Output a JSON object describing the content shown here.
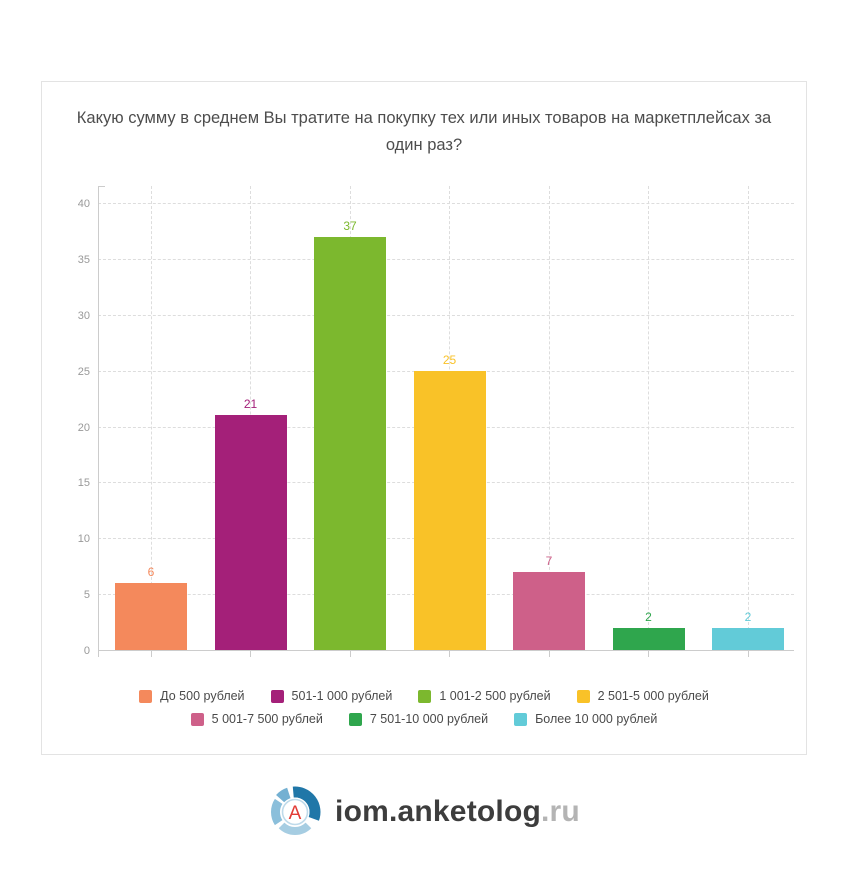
{
  "card": {
    "title": "Какую сумму в среднем Вы тратите на покупку тех или иных товаров на маркетплейсах за один раз?"
  },
  "chart_data": {
    "type": "bar",
    "title": "Какую сумму в среднем Вы тратите на покупку тех или иных товаров на маркетплейсах за один раз?",
    "categories": [
      "До 500 рублей",
      "501-1 000 рублей",
      "1 001-2 500 рублей",
      "2 501-5 000 рублей",
      "5 001-7 500 рублей",
      "7 501-10 000 рублей",
      "Более 10 000 рублей"
    ],
    "values": [
      6,
      21,
      37,
      25,
      7,
      2,
      2
    ],
    "colors": [
      "#F4895C",
      "#A42079",
      "#7CB82E",
      "#F9C228",
      "#CE6089",
      "#2FA64D",
      "#62CBD8"
    ],
    "xlabel": "",
    "ylabel": "",
    "ylim": [
      0,
      40
    ],
    "yticks": [
      0,
      5,
      10,
      15,
      20,
      25,
      30,
      35,
      40
    ],
    "grid": "dashed",
    "value_labels": true,
    "legend_position": "bottom",
    "legend_rows": [
      4,
      3
    ],
    "axis_color": "#cccccc",
    "grid_color": "#dddddd",
    "tick_label_color": "#999999"
  },
  "footer": {
    "brand_name": "iom.anketolog",
    "brand_tld": ".ru",
    "logo_letter": "A",
    "logo_letter_color": "#e23b36",
    "logo_inner_ring_color": "#bedaea",
    "logo_ring_colors": [
      "#2077A8",
      "#A6CDE2",
      "#8BBFDB",
      "#74B0D2"
    ]
  }
}
